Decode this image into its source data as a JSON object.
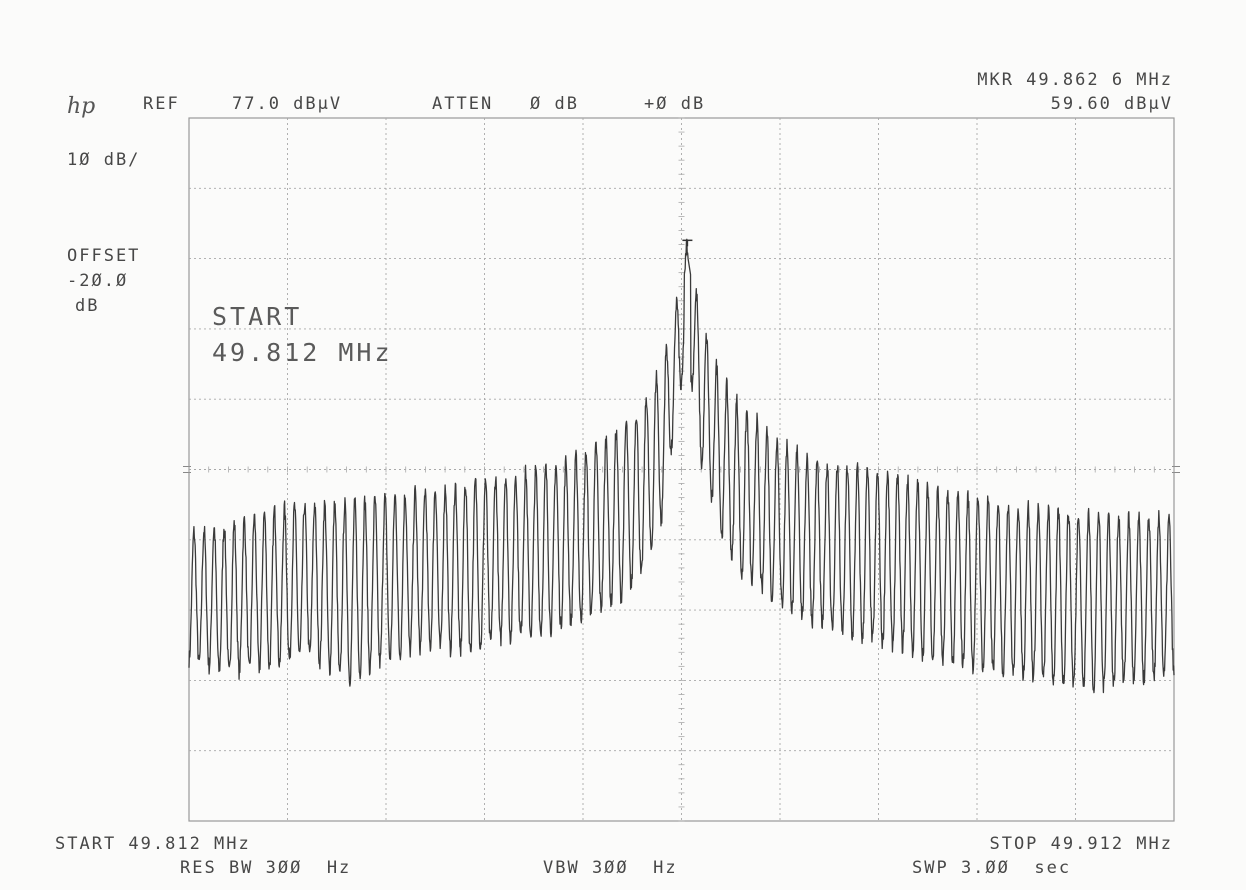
{
  "header": {
    "logo": "hp",
    "ref_label": "REF",
    "ref_value": "77.0 dBµV",
    "atten_label": "ATTEN",
    "atten_value": "Ø dB",
    "atten_extra": "+Ø dB",
    "marker_freq": "MKR 49.862 6 MHz",
    "marker_level": "59.60 dBµV"
  },
  "left": {
    "scale": "1Ø dB/",
    "offset_label": "OFFSET",
    "offset_value": "-2Ø.Ø",
    "offset_unit": "dB"
  },
  "annotation": {
    "line1": "START",
    "line2": "49.812 MHz"
  },
  "footer": {
    "start": "START 49.812 MHz",
    "res_bw": "RES BW 3ØØ  Hz",
    "vbw": "VBW 3ØØ  Hz",
    "stop": "STOP 49.912 MHz",
    "sweep": "SWP 3.ØØ  sec"
  },
  "chart_data": {
    "type": "line",
    "x_unit": "MHz",
    "y_unit": "dBµV",
    "xlim": [
      49.812,
      49.912
    ],
    "ylim": [
      -23,
      77
    ],
    "y_per_division": 10,
    "x_divisions": 10,
    "y_divisions": 10,
    "grid": true,
    "marker": {
      "x": 49.8626,
      "y": 59.6
    },
    "series": [
      {
        "x": [
          49.812,
          49.816,
          49.82,
          49.824,
          49.828,
          49.832,
          49.836,
          49.84,
          49.844,
          49.848,
          49.852,
          49.856,
          49.858,
          49.86,
          49.861,
          49.8626,
          49.864,
          49.866,
          49.868,
          49.872,
          49.876,
          49.88,
          49.884,
          49.888,
          49.892,
          49.896,
          49.9,
          49.904,
          49.908,
          49.912
        ],
        "y": [
          18,
          19,
          21,
          22,
          22,
          23,
          24,
          25,
          26,
          27,
          29,
          33,
          36,
          42,
          47,
          59.6,
          48,
          40,
          36,
          31,
          28,
          27,
          26,
          24,
          23,
          22,
          21,
          21,
          20,
          20
        ]
      },
      {
        "x": [
          49.812,
          49.816,
          49.82,
          49.824,
          49.828,
          49.832,
          49.836,
          49.84,
          49.844,
          49.848,
          49.852,
          49.856,
          49.858,
          49.86,
          49.861,
          49.8626,
          49.864,
          49.866,
          49.868,
          49.872,
          49.876,
          49.88,
          49.884,
          49.888,
          49.892,
          49.896,
          49.9,
          49.904,
          49.908,
          49.912
        ],
        "y": [
          0,
          -2,
          -1,
          1,
          -3,
          0,
          2,
          1,
          3,
          4,
          6,
          9,
          12,
          20,
          30,
          44,
          28,
          18,
          12,
          8,
          5,
          3,
          2,
          0,
          -1,
          -2,
          -3,
          -4,
          -3,
          -2
        ]
      }
    ]
  }
}
